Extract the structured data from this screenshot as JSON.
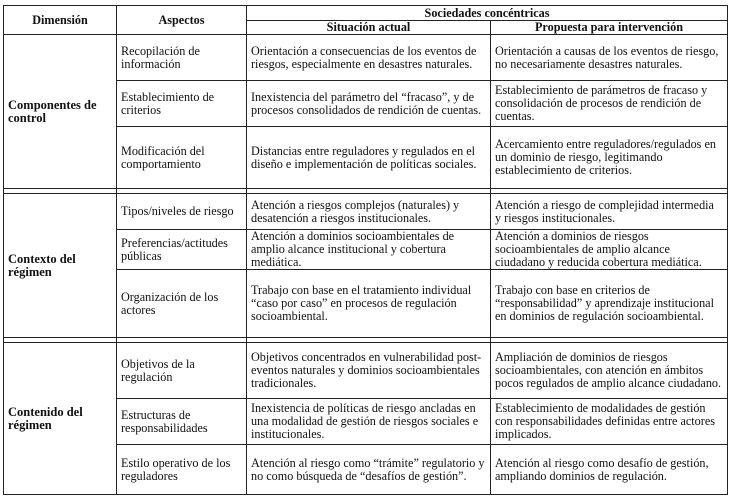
{
  "header": {
    "dimension": "Dimensión",
    "aspects": "Aspectos",
    "group": "Sociedades concéntricas",
    "current": "Situación actual",
    "proposal": "Propuesta para intervención"
  },
  "groups": [
    {
      "dimension": "Componentes de control",
      "rows": [
        {
          "aspect": "Recopilación de información",
          "current": "Orientación a consecuencias de los eventos de riesgos, especialmente en desastres naturales.",
          "proposal": "Orientación a causas de los eventos de riesgo, no necesariamente desastres naturales."
        },
        {
          "aspect": "Establecimiento de criterios",
          "current": "Inexistencia del parámetro del “fracaso”, y de procesos consolidados de rendición de cuentas.",
          "proposal": "Establecimiento de parámetros de fracaso y consolidación de procesos de rendición de cuentas."
        },
        {
          "aspect": "Modificación  del comportamiento",
          "current": "Distancias entre reguladores y regulados en el diseño e implementación de políticas sociales.",
          "proposal": "Acercamiento entre reguladores/regulados en un dominio de riesgo, legitimando establecimiento de criterios."
        }
      ]
    },
    {
      "dimension": "Contexto del régimen",
      "rows": [
        {
          "aspect": "Tipos/niveles de riesgo",
          "current": "Atención a riesgos complejos (naturales) y desatención a riesgos institucionales.",
          "proposal": "Atención a riesgo de complejidad intermedia y riesgos institucionales."
        },
        {
          "aspect": "Preferencias/actitudes públicas",
          "current": "Atención a dominios socioambientales de amplio alcance institucional y cobertura mediática.",
          "proposal": "Atención a dominios de riesgos socioambientales de amplio alcance ciudadano y reducida cobertura mediática."
        },
        {
          "aspect": "Organización de los actores",
          "current": "Trabajo con base en el tratamiento individual “caso por caso” en procesos de regulación socioambiental.",
          "proposal": "Trabajo con base en criterios de “responsabilidad” y aprendizaje institucional en dominios de regulación socioambiental."
        }
      ]
    },
    {
      "dimension": "Contenido del régimen",
      "rows": [
        {
          "aspect": "Objetivos de la regulación",
          "current": "Objetivos concentrados en vulnerabilidad post-eventos naturales y dominios socioambientales tradicionales.",
          "proposal": "Ampliación de dominios de riesgos socioambientales, con atención en ámbitos pocos regulados de amplio alcance ciudadano."
        },
        {
          "aspect": "Estructuras de responsabilidades",
          "current": "Inexistencia de políticas de riesgo ancladas en una modalidad de gestión de riesgos sociales e institucionales.",
          "proposal": "Establecimiento de modalidades de gestión con responsabilidades definidas entre actores implicados."
        },
        {
          "aspect": "Estilo operativo de los reguladores",
          "current": "Atención al riesgo como “trámite” regulatorio y no como búsqueda de “desafíos de gestión”.",
          "proposal": "Atención al riesgo como desafío de gestión, ampliando dominios de regulación."
        }
      ]
    }
  ]
}
